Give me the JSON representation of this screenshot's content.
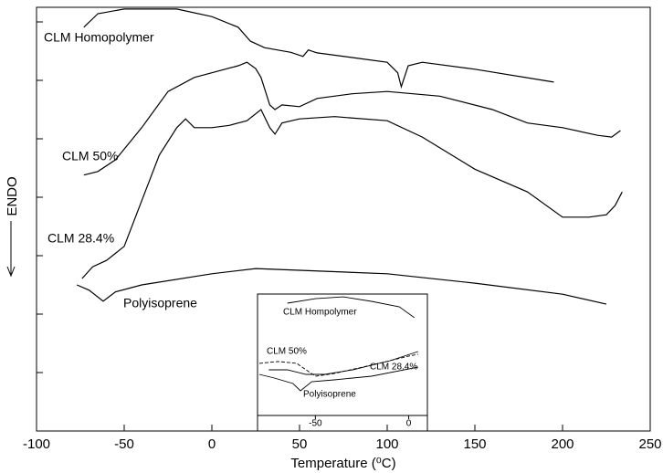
{
  "chart_data": [
    {
      "type": "line",
      "x_label": "Temperature (⁰C)",
      "y_label": "ENDO",
      "xlim": [
        -100,
        250
      ],
      "xticks": [
        -100,
        -50,
        0,
        50,
        100,
        150,
        200,
        250
      ],
      "ylim": [
        0,
        7.25
      ],
      "yticks": [
        1,
        2,
        3,
        4,
        5,
        6,
        7
      ],
      "series": [
        {
          "name": "CLM Homopolymer",
          "color": "#000000",
          "x": [
            -73,
            -65,
            -50,
            -20,
            0,
            15,
            22,
            30,
            45,
            52,
            55,
            60,
            80,
            100,
            106,
            108,
            112,
            120,
            150,
            195
          ],
          "values": [
            6.91,
            7.14,
            7.22,
            7.22,
            7.09,
            6.91,
            6.67,
            6.56,
            6.48,
            6.41,
            6.52,
            6.47,
            6.39,
            6.31,
            6.13,
            5.89,
            6.25,
            6.31,
            6.19,
            5.97
          ]
        },
        {
          "name": "CLM 50%",
          "color": "#000000",
          "x": [
            -73,
            -65,
            -55,
            -40,
            -25,
            -10,
            0,
            15,
            20,
            25,
            28,
            33,
            36,
            40,
            50,
            60,
            80,
            100,
            130,
            160,
            180,
            200,
            220,
            228,
            233
          ],
          "values": [
            4.38,
            4.44,
            4.64,
            5.19,
            5.81,
            6.05,
            6.13,
            6.25,
            6.31,
            6.2,
            6.05,
            5.58,
            5.5,
            5.58,
            5.55,
            5.69,
            5.77,
            5.81,
            5.73,
            5.5,
            5.27,
            5.19,
            5.06,
            5.03,
            5.14
          ]
        },
        {
          "name": "CLM 28.4%",
          "color": "#000000",
          "x": [
            -74,
            -68,
            -60,
            -50,
            -40,
            -30,
            -20,
            -15,
            -10,
            0,
            10,
            20,
            28,
            33,
            36,
            40,
            50,
            70,
            100,
            120,
            150,
            180,
            200,
            215,
            225,
            230,
            234
          ],
          "values": [
            2.61,
            2.81,
            2.92,
            3.16,
            3.94,
            4.72,
            5.19,
            5.34,
            5.19,
            5.19,
            5.23,
            5.31,
            5.5,
            5.19,
            5.08,
            5.27,
            5.34,
            5.38,
            5.31,
            5.03,
            4.48,
            4.09,
            3.66,
            3.66,
            3.7,
            3.86,
            4.09
          ]
        },
        {
          "name": "Polyisoprene",
          "color": "#000000",
          "x": [
            -77,
            -70,
            -62,
            -55,
            -40,
            0,
            25,
            50,
            100,
            150,
            200,
            225
          ],
          "values": [
            2.5,
            2.41,
            2.22,
            2.38,
            2.5,
            2.69,
            2.78,
            2.75,
            2.69,
            2.53,
            2.34,
            2.17
          ]
        }
      ]
    },
    {
      "type": "line",
      "xlim": [
        -81,
        10
      ],
      "xticks": [
        -50,
        0
      ],
      "ylim": [
        0,
        10
      ],
      "series": [
        {
          "name": "CLM Hompolymer",
          "color": "#000000",
          "dash": false,
          "x": [
            -65,
            -50,
            -35,
            -20,
            -5,
            3
          ],
          "values": [
            9.25,
            9.62,
            9.77,
            9.4,
            8.95,
            8.05
          ]
        },
        {
          "name": "CLM 50%",
          "color": "#000000",
          "dash": true,
          "x": [
            -80,
            -70,
            -60,
            -55,
            -50,
            -40,
            -20,
            0,
            5
          ],
          "values": [
            4.29,
            4.44,
            4.29,
            3.76,
            3.23,
            3.46,
            4.14,
            4.89,
            5.04
          ]
        },
        {
          "name": "CLM 28.4%",
          "color": "#000000",
          "dash": false,
          "x": [
            -75,
            -65,
            -55,
            -45,
            -30,
            -10,
            5
          ],
          "values": [
            3.76,
            3.76,
            3.38,
            3.38,
            3.76,
            4.51,
            5.26
          ]
        },
        {
          "name": "Polyisoprene",
          "color": "#000000",
          "dash": false,
          "x": [
            -80,
            -72,
            -62,
            -58,
            -52,
            -40,
            -20,
            5
          ],
          "values": [
            3.38,
            3.08,
            2.63,
            2.03,
            2.78,
            2.93,
            3.23,
            3.98
          ]
        }
      ]
    }
  ]
}
